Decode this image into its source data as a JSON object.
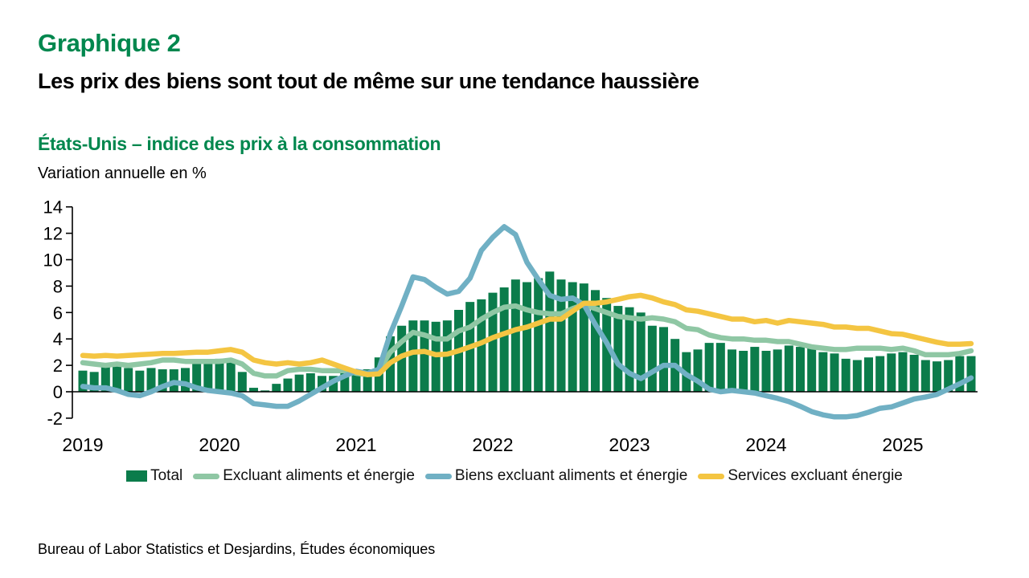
{
  "title": "Graphique 2",
  "headline": "Les prix des biens sont tout de même sur une tendance haussière",
  "subtitle": "États-Unis – indice des prix à la consommation",
  "axis_note": "Variation annuelle en %",
  "source": "Bureau of Labor Statistics et Desjardins, Études économiques",
  "colors": {
    "title_green": "#00874E",
    "bar_green": "#0B7C4B",
    "core_green": "#8FC7A4",
    "goods_blue": "#70B0C4",
    "services_yellow": "#F4C542",
    "axis_black": "#000000"
  },
  "legend": [
    {
      "label": "Total",
      "marker": "square",
      "color": "bar_green"
    },
    {
      "label": "Excluant aliments et énergie",
      "marker": "line",
      "color": "core_green"
    },
    {
      "label": "Biens excluant aliments et énergie",
      "marker": "line",
      "color": "goods_blue"
    },
    {
      "label": "Services excluant énergie",
      "marker": "line",
      "color": "services_yellow"
    }
  ],
  "chart_data": {
    "type": "bar+line",
    "x_frequency": "monthly",
    "x_start": "2019-01",
    "x_end": "2025-07",
    "year_labels": [
      "2019",
      "2020",
      "2021",
      "2022",
      "2023",
      "2024",
      "2025"
    ],
    "ylim": [
      -2,
      14
    ],
    "yticks": [
      14,
      12,
      10,
      8,
      6,
      4,
      2,
      0,
      -2
    ],
    "ylabel": "Variation annuelle en %",
    "grid": false,
    "legend_position": "bottom",
    "bar_series": {
      "name": "Total",
      "color": "bar_green",
      "values": [
        1.6,
        1.5,
        1.9,
        2.0,
        1.8,
        1.6,
        1.8,
        1.7,
        1.7,
        1.8,
        2.1,
        2.3,
        2.5,
        2.3,
        1.5,
        0.3,
        0.1,
        0.6,
        1.0,
        1.3,
        1.4,
        1.2,
        1.2,
        1.4,
        1.4,
        1.7,
        2.6,
        4.2,
        5.0,
        5.4,
        5.4,
        5.3,
        5.4,
        6.2,
        6.8,
        7.0,
        7.5,
        7.9,
        8.5,
        8.3,
        8.6,
        9.1,
        8.5,
        8.3,
        8.2,
        7.7,
        7.1,
        6.5,
        6.4,
        6.0,
        5.0,
        4.9,
        4.0,
        3.0,
        3.2,
        3.7,
        3.7,
        3.2,
        3.1,
        3.4,
        3.1,
        3.2,
        3.5,
        3.4,
        3.3,
        3.0,
        2.9,
        2.5,
        2.4,
        2.6,
        2.7,
        2.9,
        3.0,
        2.8,
        2.4,
        2.3,
        2.4,
        2.7,
        2.7
      ]
    },
    "line_series": [
      {
        "name": "Excluant aliments et énergie",
        "color": "core_green",
        "values": [
          2.2,
          2.1,
          2.0,
          2.1,
          2.0,
          2.1,
          2.2,
          2.4,
          2.4,
          2.3,
          2.3,
          2.3,
          2.3,
          2.4,
          2.1,
          1.4,
          1.2,
          1.2,
          1.6,
          1.7,
          1.7,
          1.6,
          1.6,
          1.6,
          1.4,
          1.3,
          1.6,
          3.0,
          3.8,
          4.5,
          4.3,
          4.0,
          4.0,
          4.6,
          4.9,
          5.5,
          6.0,
          6.4,
          6.5,
          6.2,
          6.0,
          5.9,
          5.9,
          6.3,
          6.6,
          6.3,
          6.0,
          5.7,
          5.6,
          5.5,
          5.6,
          5.5,
          5.3,
          4.8,
          4.7,
          4.3,
          4.1,
          4.0,
          4.0,
          3.9,
          3.9,
          3.8,
          3.8,
          3.6,
          3.4,
          3.3,
          3.2,
          3.2,
          3.3,
          3.3,
          3.3,
          3.2,
          3.3,
          3.1,
          2.8,
          2.8,
          2.8,
          2.9,
          3.1
        ]
      },
      {
        "name": "Biens excluant aliments et énergie",
        "color": "goods_blue",
        "values": [
          0.4,
          0.3,
          0.3,
          0.1,
          -0.2,
          -0.3,
          0.0,
          0.4,
          0.7,
          0.6,
          0.3,
          0.1,
          0.0,
          -0.1,
          -0.3,
          -0.9,
          -1.0,
          -1.1,
          -1.1,
          -0.7,
          -0.2,
          0.3,
          0.8,
          1.2,
          1.55,
          1.4,
          1.7,
          4.4,
          6.5,
          8.7,
          8.5,
          7.9,
          7.4,
          7.6,
          8.6,
          10.7,
          11.7,
          12.5,
          11.9,
          9.8,
          8.5,
          7.3,
          7.0,
          7.1,
          6.6,
          5.1,
          3.7,
          2.1,
          1.4,
          1.0,
          1.5,
          2.0,
          2.0,
          1.3,
          0.8,
          0.2,
          0.0,
          0.1,
          0.0,
          -0.1,
          -0.3,
          -0.5,
          -0.75,
          -1.1,
          -1.5,
          -1.75,
          -1.9,
          -1.9,
          -1.8,
          -1.55,
          -1.25,
          -1.15,
          -0.85,
          -0.55,
          -0.4,
          -0.2,
          0.2,
          0.6,
          1.05
        ]
      },
      {
        "name": "Services excluant énergie",
        "color": "services_yellow",
        "values": [
          2.75,
          2.7,
          2.75,
          2.7,
          2.75,
          2.8,
          2.85,
          2.9,
          2.9,
          2.95,
          3.0,
          3.0,
          3.1,
          3.2,
          3.0,
          2.4,
          2.2,
          2.1,
          2.2,
          2.1,
          2.2,
          2.4,
          2.1,
          1.8,
          1.5,
          1.3,
          1.35,
          2.2,
          2.7,
          3.0,
          3.05,
          2.8,
          2.85,
          3.1,
          3.4,
          3.7,
          4.1,
          4.4,
          4.7,
          4.9,
          5.2,
          5.5,
          5.5,
          6.1,
          6.7,
          6.7,
          6.8,
          7.0,
          7.2,
          7.3,
          7.1,
          6.8,
          6.6,
          6.2,
          6.1,
          5.9,
          5.7,
          5.5,
          5.5,
          5.3,
          5.4,
          5.2,
          5.4,
          5.3,
          5.2,
          5.1,
          4.9,
          4.9,
          4.8,
          4.8,
          4.6,
          4.4,
          4.35,
          4.15,
          3.95,
          3.75,
          3.6,
          3.6,
          3.65
        ]
      }
    ]
  }
}
